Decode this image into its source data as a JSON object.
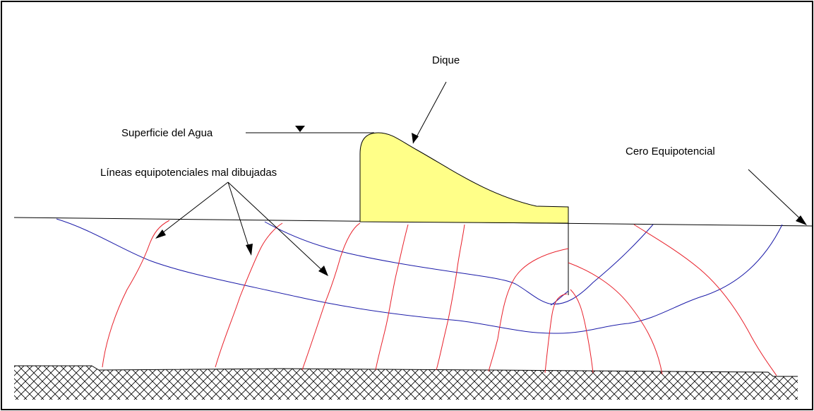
{
  "labels": {
    "dam": "Dique",
    "water_surface": "Superficie del Agua",
    "zero_equipotential": "Cero Equipotencial",
    "bad_equipotential_lines": "Líneas equipotenciales mal dibujadas"
  },
  "colors": {
    "dam_fill": "#ffff88",
    "flow_lines": "#1a1aa8",
    "equipotential_lines": "#e8202a",
    "outline": "#000000"
  }
}
